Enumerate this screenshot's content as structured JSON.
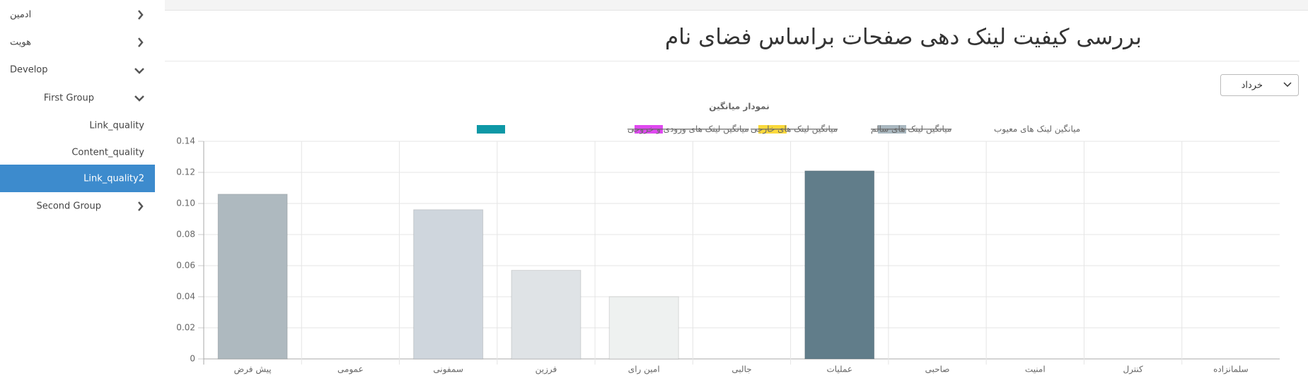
{
  "sidebar": {
    "items": [
      "ادمین",
      "هویت",
      "Develop",
      "First Group",
      "Link_quality",
      "Content_quality",
      "Link_quality2",
      "Second Group"
    ]
  },
  "header": {
    "title": "بررسی کیفیت لینک دهی صفحات براساس فضای نام"
  },
  "select": {
    "value": "خرداد"
  },
  "chart_data": {
    "type": "bar",
    "title": "نمودار میانگین",
    "categories": [
      "پیش فرض",
      "عمومی",
      "سمفونی",
      "فرزین",
      "امین رای",
      "جالبی",
      "عملیات",
      "صاحبی",
      "امنیت",
      "کنترل",
      "سلمانزاده"
    ],
    "series": [
      {
        "name": "میانگین لینک های معیوب",
        "color": "#aab8c0",
        "values": [
          0.106,
          0,
          0.096,
          0.057,
          0.04,
          0,
          0.121,
          0,
          0,
          0,
          0
        ],
        "colors": [
          "#aeb9bf",
          "#b7c2c9",
          "#cfd6dd",
          "#dfe3e6",
          "#eef1f0",
          "#e6e9ea",
          "#617d8a",
          "#aeb9bf",
          "#cfd6dd",
          "#dfe3e6",
          "#eef1f0"
        ]
      },
      {
        "name": "میانگین لینک های سالم",
        "color": "#fbd93c",
        "hidden": true
      },
      {
        "name": "میانگین لینک های خارجی",
        "color": "#df49f0",
        "hidden": true
      },
      {
        "name": "میانگین لینک های ورودی و خروجی",
        "color": "#0e98a6",
        "hidden": true
      }
    ],
    "ylim": [
      0,
      0.14
    ],
    "yticks": [
      0,
      0.02,
      0.04,
      0.06,
      0.08,
      {
        "value": 0.1,
        "label": "0.10"
      },
      0.12,
      0.14
    ],
    "grid": true
  }
}
